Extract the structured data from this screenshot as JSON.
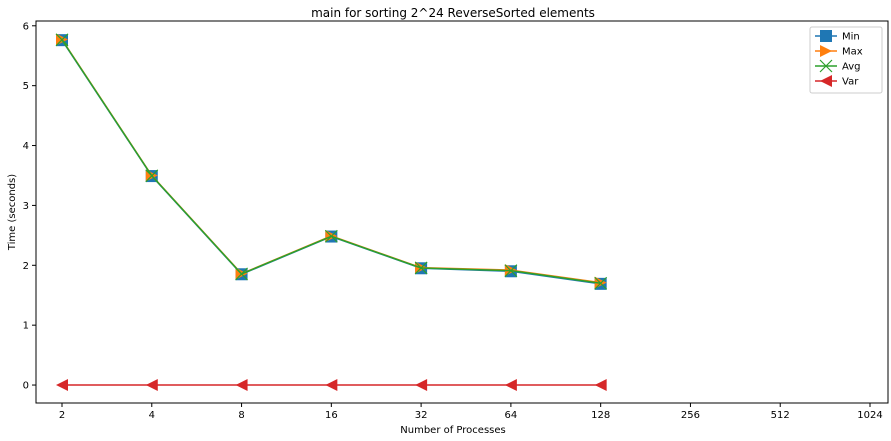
{
  "chart_data": {
    "type": "line",
    "title": "main for sorting 2^24 ReverseSorted elements",
    "xlabel": "Number of Processes",
    "ylabel": "Time (seconds)",
    "x_scale": "log2",
    "categories": [
      "2",
      "4",
      "8",
      "16",
      "32",
      "64",
      "128",
      "256",
      "512",
      "1024"
    ],
    "x": [
      2,
      4,
      8,
      16,
      32,
      64,
      128
    ],
    "ylim": [
      -0.3,
      6.08
    ],
    "yticks": [
      "0",
      "1",
      "2",
      "3",
      "4",
      "5",
      "6"
    ],
    "grid": false,
    "legend_position": "top-right",
    "series": [
      {
        "name": "Min",
        "color": "#1f77b4",
        "marker": "square",
        "values": [
          5.76,
          3.49,
          1.85,
          2.48,
          1.95,
          1.9,
          1.69
        ]
      },
      {
        "name": "Max",
        "color": "#ff7f0e",
        "marker": "triangle-right",
        "values": [
          5.77,
          3.5,
          1.86,
          2.49,
          1.96,
          1.92,
          1.71
        ]
      },
      {
        "name": "Avg",
        "color": "#2ca02c",
        "marker": "x",
        "values": [
          5.765,
          3.495,
          1.855,
          2.485,
          1.955,
          1.91,
          1.7
        ]
      },
      {
        "name": "Var",
        "color": "#d62728",
        "marker": "triangle-left",
        "values": [
          0.0,
          0.0,
          0.0,
          0.0,
          0.0,
          0.0,
          0.0
        ]
      }
    ]
  }
}
